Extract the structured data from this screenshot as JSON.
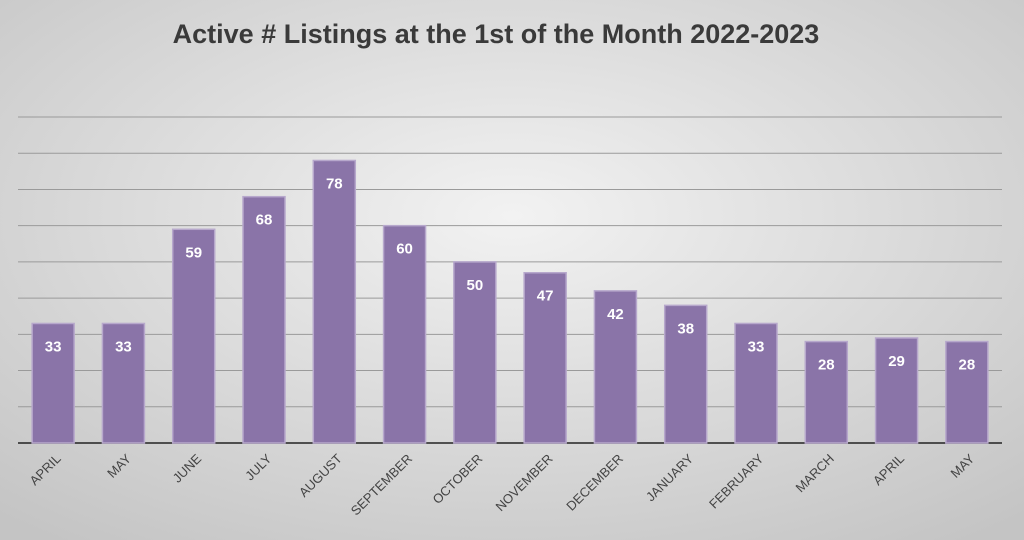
{
  "chart_data": {
    "type": "bar",
    "title": "Active # Listings at the 1st of the Month 2022-2023",
    "categories": [
      "APRIL",
      "MAY",
      "JUNE",
      "JULY",
      "AUGUST",
      "SEPTEMBER",
      "OCTOBER",
      "NOVEMBER",
      "DECEMBER",
      "JANUARY",
      "FEBRUARY",
      "MARCH",
      "APRIL",
      "MAY"
    ],
    "values": [
      33,
      33,
      59,
      68,
      78,
      60,
      50,
      47,
      42,
      38,
      33,
      28,
      29,
      28
    ],
    "color": "#8a74a8",
    "ylim": [
      0,
      90
    ],
    "yticks": [
      0,
      10,
      20,
      30,
      40,
      50,
      60,
      70,
      80,
      90
    ],
    "grid": true
  }
}
